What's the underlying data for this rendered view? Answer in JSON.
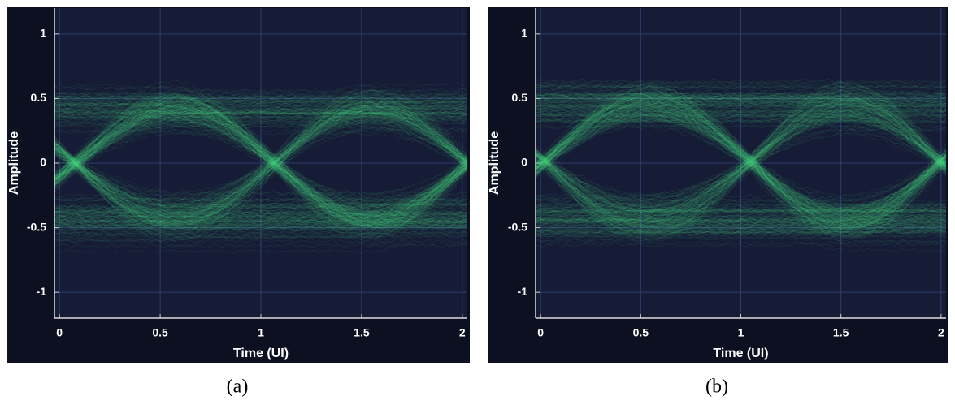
{
  "chart_data": [
    {
      "type": "eye",
      "caption": "(a)",
      "xlabel": "Time (UI)",
      "ylabel": "Amplitude",
      "xlim": [
        -0.025,
        2.025
      ],
      "ylim": [
        -1.2,
        1.2
      ],
      "xticks": [
        0,
        0.5,
        1,
        1.5,
        2
      ],
      "yticks": [
        -1,
        -0.5,
        0,
        0.5,
        1
      ],
      "grid": true,
      "color": "#5cf58a",
      "levels": [
        -0.43,
        0.43
      ],
      "crossings": [
        0.08,
        1.07,
        2.03
      ]
    },
    {
      "type": "eye",
      "caption": "(b)",
      "xlabel": "Time (UI)",
      "ylabel": "Amplitude",
      "xlim": [
        -0.025,
        2.025
      ],
      "ylim": [
        -1.2,
        1.2
      ],
      "xticks": [
        0,
        0.5,
        1,
        1.5,
        2
      ],
      "yticks": [
        -1,
        -0.5,
        0,
        0.5,
        1
      ],
      "grid": true,
      "color": "#5cf58a",
      "levels": [
        -0.44,
        0.46
      ],
      "crossings": [
        0.02,
        1.05,
        2.0
      ]
    }
  ]
}
